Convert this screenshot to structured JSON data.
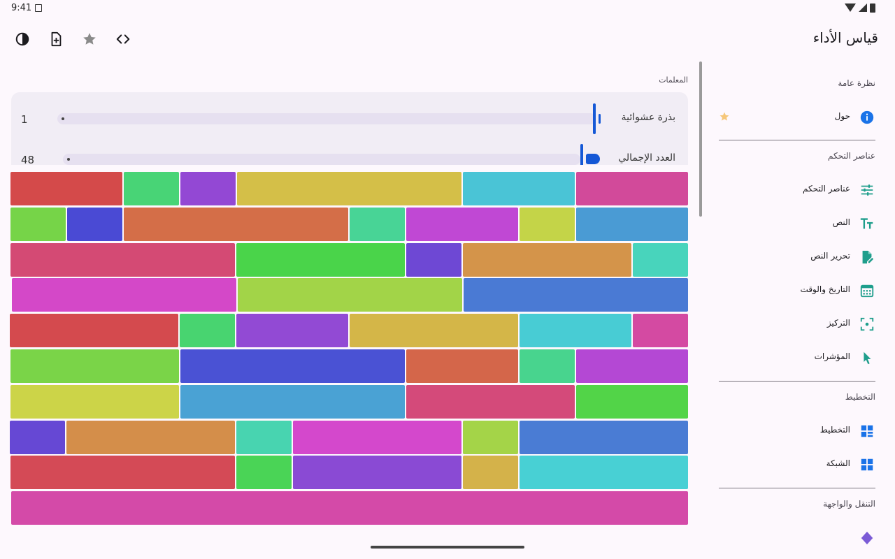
{
  "status": {
    "time": "9:41"
  },
  "app": {
    "title": "قياس الأداء"
  },
  "toolbar": {
    "actions": [
      {
        "icon": "code-icon"
      },
      {
        "icon": "star-icon"
      },
      {
        "icon": "add-file-icon"
      },
      {
        "icon": "contrast-icon"
      }
    ]
  },
  "params": {
    "header": "المعلمات",
    "seed": {
      "label": "بذرة عشوائية",
      "value": "1"
    },
    "total": {
      "label": "العدد الإجمالي",
      "value": "48"
    }
  },
  "sidebar": {
    "sections": [
      {
        "title": "نظرة عامة",
        "items": [
          {
            "label": "حول",
            "icon": "info-icon",
            "starred": true
          }
        ]
      },
      {
        "title": "عناصر التحكم",
        "items": [
          {
            "label": "عناصر التحكم",
            "icon": "tune-icon"
          },
          {
            "label": "النص",
            "icon": "text-size-icon"
          },
          {
            "label": "تحرير النص",
            "icon": "edit-document-icon"
          },
          {
            "label": "التاريخ والوقت",
            "icon": "calendar-icon"
          },
          {
            "label": "التركيز",
            "icon": "focus-icon"
          },
          {
            "label": "المؤشرات",
            "icon": "pointer-icon"
          }
        ]
      },
      {
        "title": "التخطيط",
        "items": [
          {
            "label": "التخطيط",
            "icon": "layout-icon"
          },
          {
            "label": "الشبكة",
            "icon": "grid-icon"
          }
        ]
      },
      {
        "title": "التنقل والواجهة",
        "items": [
          {
            "label": "",
            "icon": "diamond-icon"
          }
        ]
      }
    ]
  },
  "colors": {
    "accent": "#1558d6",
    "sidebar_icon": "#1f9e8c",
    "info": "#1a73e8",
    "star": "#f6c77a"
  },
  "tiles": [
    [
      {
        "w": 160,
        "c": "#d24a9a"
      },
      {
        "w": 160,
        "c": "#4ac4d6"
      },
      {
        "w": 321,
        "c": "#d4bf48"
      },
      {
        "w": 79,
        "c": "#9348d4"
      },
      {
        "w": 79,
        "c": "#48d476"
      },
      {
        "w": 160,
        "c": "#d44a4a"
      }
    ],
    [
      {
        "w": 160,
        "c": "#4a9bd4"
      },
      {
        "w": 79,
        "c": "#c4d448"
      },
      {
        "w": 160,
        "c": "#c048d4"
      },
      {
        "w": 79,
        "c": "#48d496"
      },
      {
        "w": 321,
        "c": "#d46e48"
      },
      {
        "w": 79,
        "c": "#4a4ad4"
      },
      {
        "w": 79,
        "c": "#76d448"
      }
    ],
    [
      {
        "w": 79,
        "c": "#48d4bc"
      },
      {
        "w": 241,
        "c": "#d4944a"
      },
      {
        "w": 79,
        "c": "#6e48d4"
      },
      {
        "w": 241,
        "c": "#4ad44a"
      },
      {
        "w": 321,
        "c": "#d44a74"
      }
    ],
    [
      {
        "w": 321,
        "c": "#4a7ad4"
      },
      {
        "w": 321,
        "c": "#a2d448"
      },
      {
        "w": 321,
        "c": "#d448c8"
      }
    ],
    [
      {
        "w": 79,
        "c": "#d44aa2"
      },
      {
        "w": 160,
        "c": "#48ccd4"
      },
      {
        "w": 241,
        "c": "#d4b648"
      },
      {
        "w": 160,
        "c": "#924ad4"
      },
      {
        "w": 79,
        "c": "#48d470"
      },
      {
        "w": 241,
        "c": "#d44a4e"
      }
    ],
    [
      {
        "w": 160,
        "c": "#b448d4"
      },
      {
        "w": 79,
        "c": "#48d48e"
      },
      {
        "w": 160,
        "c": "#d4664a"
      },
      {
        "w": 321,
        "c": "#4a52d4"
      },
      {
        "w": 241,
        "c": "#7ad448"
      }
    ],
    [
      {
        "w": 160,
        "c": "#52d448"
      },
      {
        "w": 241,
        "c": "#d44a7a"
      },
      {
        "w": 321,
        "c": "#4aa2d4"
      },
      {
        "w": 241,
        "c": "#ccd448"
      }
    ],
    [
      {
        "w": 241,
        "c": "#4a7cd4"
      },
      {
        "w": 79,
        "c": "#a4d448"
      },
      {
        "w": 241,
        "c": "#d448cc"
      },
      {
        "w": 79,
        "c": "#48d4b0"
      },
      {
        "w": 241,
        "c": "#d48e4a"
      },
      {
        "w": 79,
        "c": "#6648d4"
      }
    ],
    [
      {
        "w": 241,
        "c": "#48d0d4"
      },
      {
        "w": 79,
        "c": "#d4b24a"
      },
      {
        "w": 241,
        "c": "#8a4ad4"
      },
      {
        "w": 79,
        "c": "#4ad456"
      },
      {
        "w": 321,
        "c": "#d44a56"
      }
    ],
    [
      {
        "w": 968,
        "c": "#d44aa8"
      }
    ]
  ]
}
